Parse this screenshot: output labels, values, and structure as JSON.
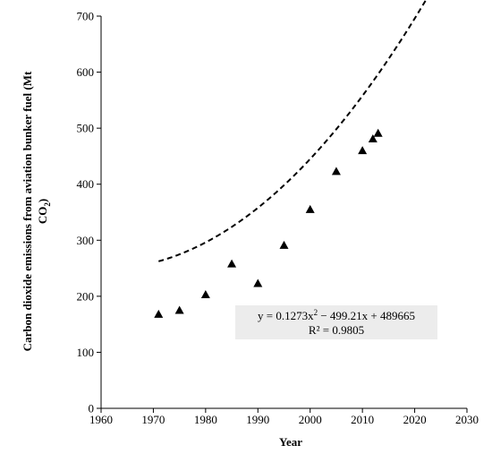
{
  "chart_data": {
    "type": "scatter",
    "xlabel": "Year",
    "ylabel_line1": "Carbon dioxide emissions from aviation bunker  fuel (Mt",
    "ylabel_line2": "CO",
    "ylabel_sub": "2",
    "ylabel_close": ")",
    "xlim": [
      1960,
      2030
    ],
    "ylim": [
      0,
      700
    ],
    "xticks": [
      1960,
      1970,
      1980,
      1990,
      2000,
      2010,
      2020,
      2030
    ],
    "yticks": [
      0,
      100,
      200,
      300,
      400,
      500,
      600,
      700
    ],
    "grid": false,
    "marker": "triangle",
    "points": [
      {
        "x": 1971,
        "y": 168
      },
      {
        "x": 1975,
        "y": 175
      },
      {
        "x": 1980,
        "y": 203
      },
      {
        "x": 1985,
        "y": 258
      },
      {
        "x": 1990,
        "y": 223
      },
      {
        "x": 1995,
        "y": 291
      },
      {
        "x": 2000,
        "y": 355
      },
      {
        "x": 2005,
        "y": 423
      },
      {
        "x": 2010,
        "y": 460
      },
      {
        "x": 2012,
        "y": 481
      },
      {
        "x": 2013,
        "y": 491
      }
    ],
    "trendline": {
      "type": "polynomial",
      "order": 2,
      "coefficients": [
        0.1273,
        -499.21,
        489665
      ],
      "x_range": [
        1971,
        2023
      ],
      "style": "dashed",
      "equation_parts": [
        "y = 0.1273x",
        "2",
        " − 499.21x + 489665"
      ],
      "r_squared_label": "R² = 0.9805"
    }
  }
}
